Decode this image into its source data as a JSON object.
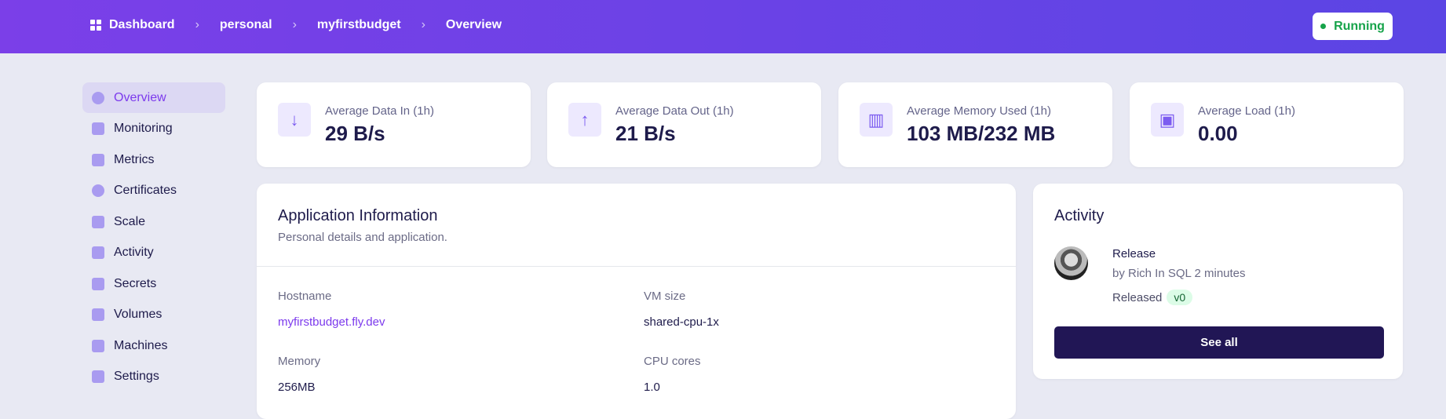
{
  "header": {
    "breadcrumbs": [
      "Dashboard",
      "personal",
      "myfirstbudget",
      "Overview"
    ],
    "status": "Running",
    "status_color": "#16a34a"
  },
  "sidebar": {
    "items": [
      {
        "label": "Overview",
        "icon": "pie-chart-icon",
        "active": true
      },
      {
        "label": "Monitoring",
        "icon": "monitor-icon"
      },
      {
        "label": "Metrics",
        "icon": "bar-chart-icon"
      },
      {
        "label": "Certificates",
        "icon": "badge-check-icon"
      },
      {
        "label": "Scale",
        "icon": "scale-icon"
      },
      {
        "label": "Activity",
        "icon": "activity-icon"
      },
      {
        "label": "Secrets",
        "icon": "lock-icon"
      },
      {
        "label": "Volumes",
        "icon": "archive-icon"
      },
      {
        "label": "Machines",
        "icon": "chip-icon"
      },
      {
        "label": "Settings",
        "icon": "toggles-icon"
      }
    ]
  },
  "stats": [
    {
      "label": "Average Data In (1h)",
      "value": "29 B/s",
      "icon": "arrow-down-icon"
    },
    {
      "label": "Average Data Out (1h)",
      "value": "21 B/s",
      "icon": "arrow-up-icon"
    },
    {
      "label": "Average Memory Used (1h)",
      "value": "103 MB/232 MB",
      "icon": "memory-icon"
    },
    {
      "label": "Average Load (1h)",
      "value": "0.00",
      "icon": "cpu-icon"
    }
  ],
  "app_info": {
    "title": "Application Information",
    "subtitle": "Personal details and application.",
    "fields": [
      {
        "label": "Hostname",
        "value": "myfirstbudget.fly.dev"
      },
      {
        "label": "VM size",
        "value": "shared-cpu-1x"
      },
      {
        "label": "Memory",
        "value": "256MB"
      },
      {
        "label": "CPU cores",
        "value": "1.0"
      }
    ]
  },
  "activity": {
    "title": "Activity",
    "items": [
      {
        "title": "Release",
        "by": "by Rich In SQL 2 minutes",
        "status": "Released",
        "version": "v0"
      }
    ],
    "see_all": "See all"
  }
}
